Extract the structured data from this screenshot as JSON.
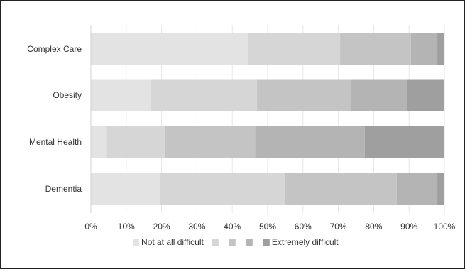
{
  "chart_data": {
    "type": "bar",
    "orientation": "horizontal",
    "stacked": true,
    "percent": true,
    "categories": [
      "Complex Care",
      "Obesity",
      "Mental Health",
      "Dementia"
    ],
    "series": [
      {
        "name": "Not at all difficult",
        "color": "#e3e3e3",
        "values": [
          44.5,
          17,
          4.5,
          19.5
        ]
      },
      {
        "name": "",
        "color": "#d6d6d6",
        "values": [
          26,
          30,
          16.5,
          35.5
        ]
      },
      {
        "name": "",
        "color": "#c4c4c4",
        "values": [
          20,
          26.5,
          25.5,
          31.5
        ]
      },
      {
        "name": "",
        "color": "#b4b4b4",
        "values": [
          7.5,
          16,
          31,
          11.5
        ]
      },
      {
        "name": "Extremely difficult",
        "color": "#9f9f9f",
        "values": [
          2,
          10.5,
          22.5,
          2
        ]
      }
    ],
    "xlim": [
      0,
      100
    ],
    "x_ticks": [
      "0%",
      "10%",
      "20%",
      "30%",
      "40%",
      "50%",
      "60%",
      "70%",
      "80%",
      "90%",
      "100%"
    ],
    "grid": "vertical",
    "legend_position": "bottom"
  }
}
